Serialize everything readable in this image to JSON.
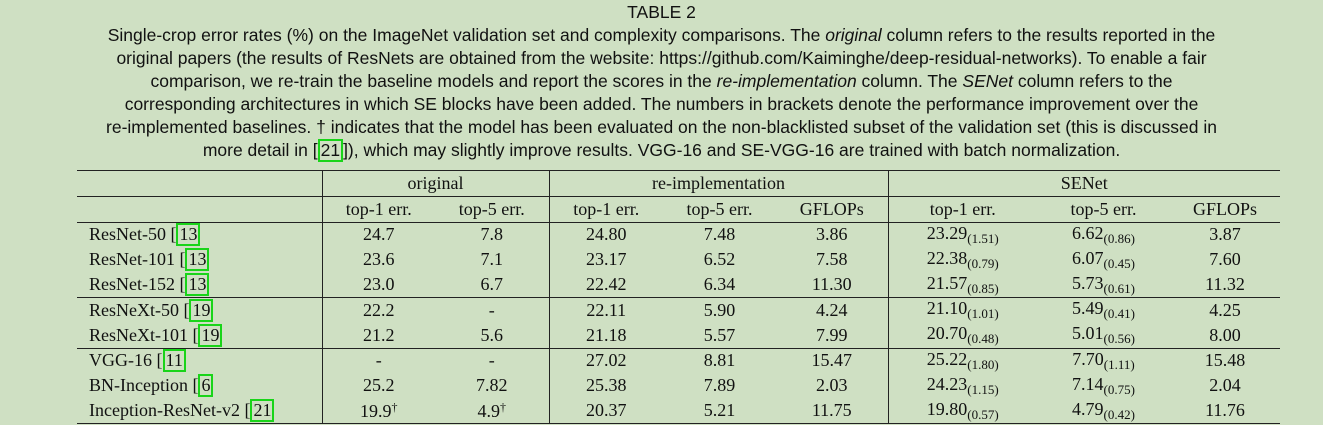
{
  "caption": {
    "title": "TABLE 2",
    "l1a": "Single-crop error rates (%) on the ImageNet validation set and complexity comparisons. The ",
    "l1b": "original",
    "l1c": " column refers to the results reported in the",
    "l2": "original papers (the results of ResNets are obtained from the website: https://github.com/Kaiminghe/deep-residual-networks). To enable a fair",
    "l3a": "comparison, we re-train the baseline models and report the scores in the ",
    "l3b": "re-implementation",
    "l3c": " column. The ",
    "l3d": "SENet",
    "l3e": " column refers to the",
    "l4": "corresponding architectures in which SE blocks have been added. The numbers in brackets denote the performance improvement over the",
    "l5": "re-implemented baselines. † indicates that the model has been evaluated on the non-blacklisted subset of the validation set (this is discussed in",
    "l6a": "more detail in [",
    "l6cite": "21",
    "l6b": "]), which may slightly improve results. VGG-16 and SE-VGG-16 are trained with batch normalization."
  },
  "table": {
    "group_headers": [
      "original",
      "re-implementation",
      "SENet"
    ],
    "sub_headers": [
      "top-1 err.",
      "top-5 err.",
      "top-1 err.",
      "top-5 err.",
      "GFLOPs",
      "top-1 err.",
      "top-5 err.",
      "GFLOPs"
    ],
    "rows": [
      {
        "name": "ResNet-50 [",
        "cite": "13",
        "close": "",
        "o1": "24.7",
        "o5": "7.8",
        "r1": "24.80",
        "r5": "7.48",
        "rg": "3.86",
        "s1": "23.29",
        "s1d": "(1.51)",
        "s5": "6.62",
        "s5d": "(0.86)",
        "sg": "3.87"
      },
      {
        "name": "ResNet-101 [",
        "cite": "13",
        "close": "",
        "o1": "23.6",
        "o5": "7.1",
        "r1": "23.17",
        "r5": "6.52",
        "rg": "7.58",
        "s1": "22.38",
        "s1d": "(0.79)",
        "s5": "6.07",
        "s5d": "(0.45)",
        "sg": "7.60"
      },
      {
        "name": "ResNet-152 [",
        "cite": "13",
        "close": "",
        "o1": "23.0",
        "o5": "6.7",
        "r1": "22.42",
        "r5": "6.34",
        "rg": "11.30",
        "s1": "21.57",
        "s1d": "(0.85)",
        "s5": "5.73",
        "s5d": "(0.61)",
        "sg": "11.32"
      },
      {
        "name": "ResNeXt-50 [",
        "cite": "19",
        "close": "",
        "o1": "22.2",
        "o5": "-",
        "r1": "22.11",
        "r5": "5.90",
        "rg": "4.24",
        "s1": "21.10",
        "s1d": "(1.01)",
        "s5": "5.49",
        "s5d": "(0.41)",
        "sg": "4.25"
      },
      {
        "name": "ResNeXt-101 [",
        "cite": "19",
        "close": "",
        "o1": "21.2",
        "o5": "5.6",
        "r1": "21.18",
        "r5": "5.57",
        "rg": "7.99",
        "s1": "20.70",
        "s1d": "(0.48)",
        "s5": "5.01",
        "s5d": "(0.56)",
        "sg": "8.00"
      },
      {
        "name": "VGG-16 [",
        "cite": "11",
        "close": "",
        "o1": "-",
        "o5": "-",
        "r1": "27.02",
        "r5": "8.81",
        "rg": "15.47",
        "s1": "25.22",
        "s1d": "(1.80)",
        "s5": "7.70",
        "s5d": "(1.11)",
        "sg": "15.48"
      },
      {
        "name": "BN-Inception [",
        "cite": "6",
        "close": "",
        "o1": "25.2",
        "o5": "7.82",
        "r1": "25.38",
        "r5": "7.89",
        "rg": "2.03",
        "s1": "24.23",
        "s1d": "(1.15)",
        "s5": "7.14",
        "s5d": "(0.75)",
        "sg": "2.04"
      },
      {
        "name": "Inception-ResNet-v2 [",
        "cite": "21",
        "close": "",
        "o1": "19.9",
        "o1s": "†",
        "o5": "4.9",
        "o5s": "†",
        "r1": "20.37",
        "r5": "5.21",
        "rg": "11.75",
        "s1": "19.80",
        "s1d": "(0.57)",
        "s5": "4.79",
        "s5d": "(0.42)",
        "sg": "11.76"
      }
    ]
  }
}
